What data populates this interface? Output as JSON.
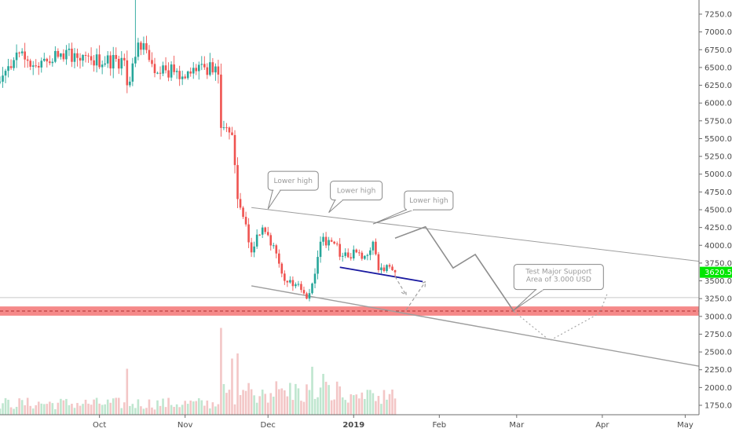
{
  "chart_data": {
    "type": "candlestick",
    "y_axis": {
      "min": 1500,
      "max": 7500,
      "ticks": [
        "7250.0",
        "7000.0",
        "6750.0",
        "6500.0",
        "6250.0",
        "6000.0",
        "5750.0",
        "5500.0",
        "5250.0",
        "5000.0",
        "4750.0",
        "4500.0",
        "4250.0",
        "4000.0",
        "3750.0",
        "3500.0",
        "3250.0",
        "3000.0",
        "2750.0",
        "2500.0",
        "2250.0",
        "2000.0",
        "1750.0"
      ],
      "position": "right"
    },
    "x_axis": {
      "labels": [
        "Oct",
        "Nov",
        "Dec",
        "2019",
        "Feb",
        "Mar",
        "Apr",
        "May"
      ],
      "label_dates": [
        "2018-10-01",
        "2018-11-01",
        "2018-12-01",
        "2019-01-01",
        "2019-02-01",
        "2019-03-01",
        "2019-04-01",
        "2019-05-01"
      ],
      "start_date": "2018-08-26",
      "end_date": "2019-05-06"
    },
    "last_price": "3620.5",
    "last_price_value": 3620.5,
    "colors": {
      "up": "#26a69a",
      "down": "#ef5350",
      "vol_up": "#bfe6cf",
      "vol_down": "#f3c6c6",
      "price_label": "#00e600",
      "support_zone": "#f47c7c",
      "trendline": "#9e9e9e",
      "short_trend": "#1a1aa0"
    },
    "anchors": [
      {
        "date": "2018-08-26",
        "close": 6300
      },
      {
        "date": "2018-09-02",
        "close": 6700
      },
      {
        "date": "2018-09-09",
        "close": 6500
      },
      {
        "date": "2018-09-16",
        "close": 6650
      },
      {
        "date": "2018-09-22",
        "close": 6700
      },
      {
        "date": "2018-09-28",
        "close": 6600
      },
      {
        "date": "2018-10-10",
        "close": 6600
      },
      {
        "date": "2018-10-11",
        "close": 6250
      },
      {
        "date": "2018-10-14",
        "close": 6650
      },
      {
        "date": "2018-10-15",
        "close": 6850
      },
      {
        "date": "2018-10-20",
        "close": 6550
      },
      {
        "date": "2018-11-01",
        "close": 6350
      },
      {
        "date": "2018-11-07",
        "close": 6550
      },
      {
        "date": "2018-11-13",
        "close": 6400
      },
      {
        "date": "2018-11-14",
        "close": 5650
      },
      {
        "date": "2018-11-18",
        "close": 5550
      },
      {
        "date": "2018-11-20",
        "close": 4650
      },
      {
        "date": "2018-11-22",
        "close": 4400
      },
      {
        "date": "2018-11-25",
        "close": 3900
      },
      {
        "date": "2018-11-27",
        "close": 4150
      },
      {
        "date": "2018-11-29",
        "close": 4250
      },
      {
        "date": "2018-12-03",
        "close": 4000
      },
      {
        "date": "2018-12-07",
        "close": 3500
      },
      {
        "date": "2018-12-11",
        "close": 3450
      },
      {
        "date": "2018-12-15",
        "close": 3250
      },
      {
        "date": "2018-12-18",
        "close": 3600
      },
      {
        "date": "2018-12-20",
        "close": 4050
      },
      {
        "date": "2018-12-24",
        "close": 4050
      },
      {
        "date": "2018-12-28",
        "close": 3850
      },
      {
        "date": "2019-01-02",
        "close": 3900
      },
      {
        "date": "2019-01-05",
        "close": 3850
      },
      {
        "date": "2019-01-08",
        "close": 4050
      },
      {
        "date": "2019-01-10",
        "close": 3650
      },
      {
        "date": "2019-01-14",
        "close": 3700
      },
      {
        "date": "2019-01-16",
        "close": 3620
      }
    ],
    "volume_spikes": [
      {
        "date": "2018-10-11",
        "volume": 0.45
      },
      {
        "date": "2018-11-14",
        "volume": 0.85
      },
      {
        "date": "2018-11-18",
        "volume": 0.55
      },
      {
        "date": "2018-11-20",
        "volume": 0.6
      },
      {
        "date": "2018-12-17",
        "volume": 0.47
      },
      {
        "date": "2018-12-21",
        "volume": 0.4
      }
    ],
    "annotations": {
      "support_zone": {
        "low": 3010,
        "high": 3140
      },
      "support_mid": 3075,
      "horizontal_level": 3265,
      "upper_trendline": [
        {
          "date": "2018-11-25",
          "price": 4530
        },
        {
          "date": "2019-05-06",
          "price": 3775
        }
      ],
      "lower_trendline": [
        {
          "date": "2018-11-25",
          "price": 3430
        },
        {
          "date": "2019-05-06",
          "price": 2300
        }
      ],
      "short_trendline": [
        {
          "date": "2018-12-27",
          "price": 3690
        },
        {
          "date": "2019-01-26",
          "price": 3490
        }
      ],
      "projection_path": [
        {
          "date": "2019-01-16",
          "price": 4100
        },
        {
          "date": "2019-01-27",
          "price": 4260
        },
        {
          "date": "2019-02-06",
          "price": 3680
        },
        {
          "date": "2019-02-14",
          "price": 3870
        },
        {
          "date": "2019-02-28",
          "price": 3070
        }
      ],
      "dotted_projection": [
        {
          "date": "2019-02-28",
          "price": 3070
        },
        {
          "date": "2019-03-13",
          "price": 2660
        },
        {
          "date": "2019-03-31",
          "price": 3045
        },
        {
          "date": "2019-04-03",
          "price": 3340
        }
      ],
      "dashed_arrows": [
        {
          "from": {
            "date": "2019-01-16",
            "price": 3560
          },
          "to": {
            "date": "2019-01-20",
            "price": 3300
          }
        },
        {
          "from": {
            "date": "2019-01-20",
            "price": 3090
          },
          "to": {
            "date": "2019-01-27",
            "price": 3490
          }
        }
      ],
      "callouts": [
        {
          "text": "Lower high",
          "anchor": {
            "date": "2018-12-01",
            "price": 4510
          }
        },
        {
          "text": "Lower high",
          "anchor": {
            "date": "2018-12-23",
            "price": 4460
          }
        },
        {
          "text": "Lower high",
          "anchor": {
            "date": "2019-01-08",
            "price": 4300
          }
        },
        {
          "text": "Test Major Support\nArea of 3.000 USD",
          "anchor": {
            "date": "2019-02-28",
            "price": 3090
          }
        }
      ]
    }
  }
}
